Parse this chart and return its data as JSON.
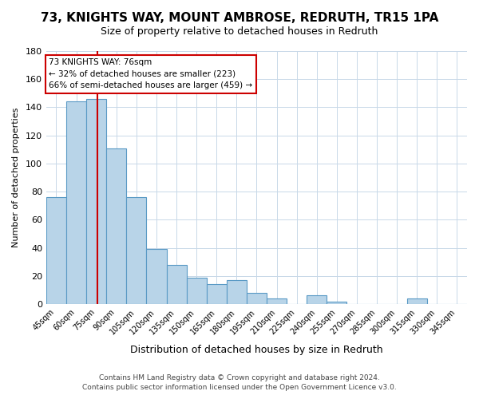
{
  "title": "73, KNIGHTS WAY, MOUNT AMBROSE, REDRUTH, TR15 1PA",
  "subtitle": "Size of property relative to detached houses in Redruth",
  "xlabel": "Distribution of detached houses by size in Redruth",
  "ylabel": "Number of detached properties",
  "bar_values": [
    76,
    144,
    146,
    111,
    76,
    39,
    28,
    19,
    14,
    17,
    8,
    4,
    0,
    6,
    2,
    0,
    0,
    0,
    4,
    0,
    0
  ],
  "bar_labels": [
    "45sqm",
    "60sqm",
    "75sqm",
    "90sqm",
    "105sqm",
    "120sqm",
    "135sqm",
    "150sqm",
    "165sqm",
    "180sqm",
    "195sqm",
    "210sqm",
    "225sqm",
    "240sqm",
    "255sqm",
    "270sqm",
    "285sqm",
    "300sqm",
    "315sqm",
    "330sqm",
    "345sqm"
  ],
  "bin_edges": [
    37.5,
    52.5,
    67.5,
    82.5,
    97.5,
    112.5,
    127.5,
    142.5,
    157.5,
    172.5,
    187.5,
    202.5,
    217.5,
    232.5,
    247.5,
    262.5,
    277.5,
    292.5,
    307.5,
    322.5,
    337.5,
    352.5
  ],
  "bar_color": "#b8d4e8",
  "bar_edge_color": "#5a9ac5",
  "property_line_x": 76,
  "property_line_color": "#cc0000",
  "ylim": [
    0,
    180
  ],
  "yticks": [
    0,
    20,
    40,
    60,
    80,
    100,
    120,
    140,
    160,
    180
  ],
  "annotation_text": "73 KNIGHTS WAY: 76sqm\n← 32% of detached houses are smaller (223)\n66% of semi-detached houses are larger (459) →",
  "annotation_box_color": "#ffffff",
  "annotation_box_edge": "#cc0000",
  "footer_line1": "Contains HM Land Registry data © Crown copyright and database right 2024.",
  "footer_line2": "Contains public sector information licensed under the Open Government Licence v3.0.",
  "background_color": "#ffffff",
  "grid_color": "#c8d8e8"
}
